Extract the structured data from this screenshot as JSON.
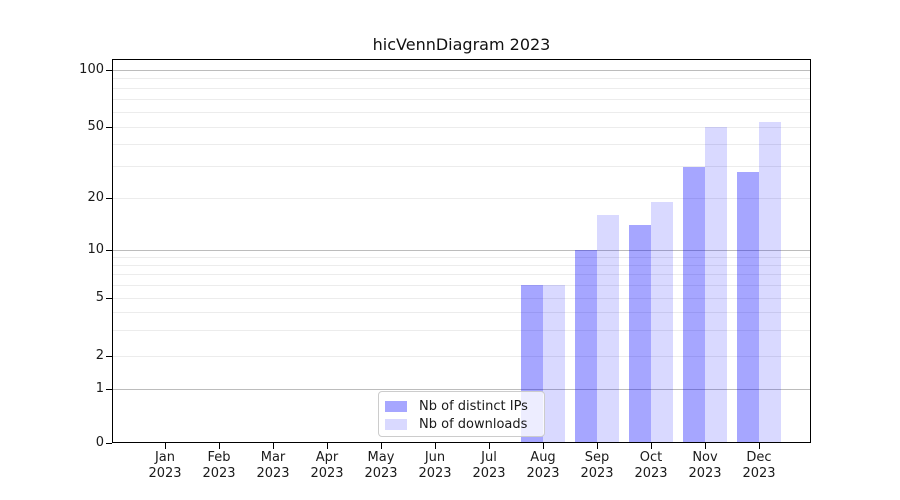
{
  "title": "hicVennDiagram 2023",
  "chart_data": {
    "type": "bar",
    "title": "hicVennDiagram 2023",
    "categories": [
      "Jan 2023",
      "Feb 2023",
      "Mar 2023",
      "Apr 2023",
      "May 2023",
      "Jun 2023",
      "Jul 2023",
      "Aug 2023",
      "Sep 2023",
      "Oct 2023",
      "Nov 2023",
      "Dec 2023"
    ],
    "series": [
      {
        "name": "Nb of distinct IPs",
        "values": [
          0,
          0,
          0,
          0,
          0,
          0,
          0,
          6,
          10,
          14,
          30,
          28
        ],
        "color": "rgba(0,0,255,0.35)"
      },
      {
        "name": "Nb of downloads",
        "values": [
          0,
          0,
          0,
          0,
          0,
          0,
          0,
          6,
          16,
          19,
          50,
          53
        ],
        "color": "rgba(0,0,255,0.15)"
      }
    ],
    "yscale": "symlog",
    "ylim": [
      0,
      100
    ],
    "yticks_labeled": [
      0,
      1,
      2,
      5,
      10,
      20,
      50,
      100
    ],
    "ygrid_major": [
      1,
      10,
      100
    ],
    "ygrid_minor": [
      2,
      3,
      4,
      5,
      6,
      7,
      8,
      9,
      20,
      30,
      40,
      50,
      60,
      70,
      80,
      90
    ],
    "grid": true,
    "legend_position": "lower center",
    "xlabel": "",
    "ylabel": ""
  },
  "legend": {
    "items": [
      {
        "label": "Nb of distinct IPs"
      },
      {
        "label": "Nb of downloads"
      }
    ]
  },
  "colors": {
    "bar_distinct_ips": "rgba(0,0,255,0.35)",
    "bar_downloads": "rgba(0,0,255,0.15)",
    "grid_major": "#bcbcbc",
    "grid_minor": "#ececec"
  }
}
